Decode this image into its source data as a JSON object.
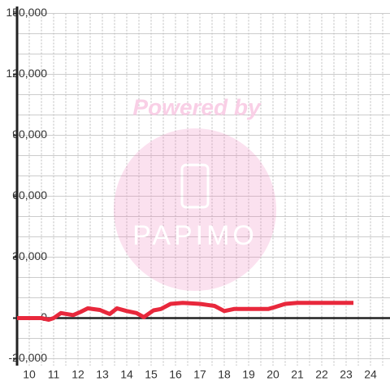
{
  "chart_data": {
    "type": "line",
    "x": [
      9.5,
      10.5,
      10.8,
      11.0,
      11.3,
      11.8,
      12.1,
      12.4,
      12.9,
      13.3,
      13.6,
      14.0,
      14.4,
      14.7,
      15.1,
      15.4,
      15.8,
      16.3,
      17.0,
      17.6,
      18.0,
      18.4,
      19.0,
      19.8,
      20.1,
      20.5,
      21.0,
      23.3
    ],
    "values": [
      0,
      0,
      -800,
      0,
      2500,
      1500,
      3000,
      4800,
      4000,
      2000,
      4800,
      3500,
      2500,
      500,
      3800,
      4500,
      7000,
      7500,
      7000,
      6000,
      3500,
      4500,
      4500,
      4500,
      5500,
      7000,
      7500,
      7500
    ],
    "color": "#e8283c",
    "xlim": [
      9.5,
      24.8
    ],
    "xticks": [
      10,
      11,
      12,
      13,
      14,
      15,
      16,
      17,
      18,
      19,
      20,
      21,
      22,
      23,
      24
    ],
    "x_minor_ticks": [
      10.5,
      11.5,
      12.5,
      13.5,
      14.5,
      15.5,
      16.5,
      17.5,
      18.5,
      19.5,
      20.5,
      21.5,
      22.5,
      23.5,
      24.5
    ],
    "ylim": [
      -20000,
      150000
    ],
    "yticks": [
      {
        "value": -20000,
        "label": "-20,000"
      },
      0,
      {
        "value": 30000,
        "label": "30,000"
      },
      {
        "value": 60000,
        "label": "60,000"
      },
      {
        "value": 90000,
        "label": "90,000"
      },
      {
        "value": 120000,
        "label": "120,000"
      },
      {
        "value": 150000,
        "label": "150,000"
      }
    ],
    "y_minor_ticks": [
      -10000,
      10000,
      20000,
      40000,
      50000,
      70000,
      80000,
      100000,
      110000,
      130000,
      140000
    ],
    "grid": true
  },
  "watermark": {
    "title": "Powered by",
    "brand": "PAPIMO"
  }
}
